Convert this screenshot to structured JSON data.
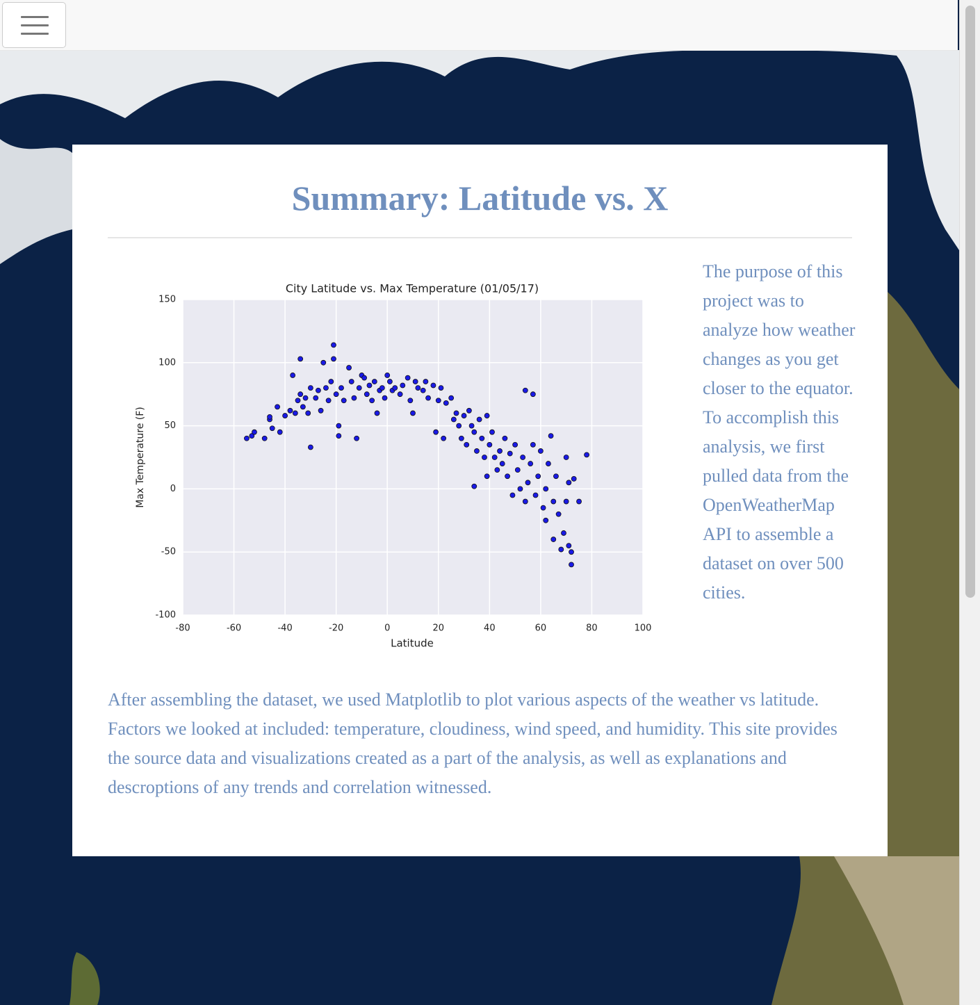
{
  "page": {
    "title": "Summary: Latitude vs. X",
    "side_text": "The purpose of this project was to analyze how weather changes as you get closer to the equator. To accomplish this analysis, we first pulled data from the OpenWeatherMap API to assemble a dataset on over 500 cities.",
    "body_text": "After assembling the dataset, we used Matplotlib to plot various aspects of the weather vs latitude. Factors we looked at included: temperature, cloudiness, wind speed, and humidity. This site provides the source data and visualizations created as a part of the analysis, as well as explanations and descroptions of any trends and correlation witnessed."
  },
  "chart_data": {
    "type": "scatter",
    "title": "City Latitude vs. Max Temperature (01/05/17)",
    "x_label": "Latitude",
    "y_label": "Max Temperature (F)",
    "color": "#1a1ae6",
    "grid": true,
    "xlim": [
      -80,
      100
    ],
    "ylim": [
      -100,
      150
    ],
    "xticks": [
      -80,
      -60,
      -40,
      -20,
      0,
      20,
      40,
      60,
      80,
      100
    ],
    "yticks": [
      -100,
      -50,
      0,
      50,
      100,
      150
    ],
    "x": [
      -55,
      -53,
      -52,
      -48,
      -46,
      -46,
      -45,
      -43,
      -42,
      -40,
      -38,
      -37,
      -36,
      -35,
      -34,
      -34,
      -33,
      -32,
      -31,
      -30,
      -30,
      -28,
      -27,
      -26,
      -25,
      -24,
      -23,
      -22,
      -21,
      -21,
      -20,
      -19,
      -19,
      -18,
      -17,
      -15,
      -14,
      -13,
      -12,
      -11,
      -10,
      -9,
      -8,
      -7,
      -6,
      -5,
      -4,
      -3,
      -2,
      -1,
      0,
      1,
      2,
      3,
      5,
      6,
      8,
      9,
      10,
      11,
      12,
      14,
      15,
      16,
      18,
      19,
      20,
      21,
      22,
      23,
      25,
      26,
      27,
      28,
      29,
      30,
      31,
      32,
      33,
      34,
      35,
      36,
      37,
      38,
      39,
      40,
      41,
      42,
      43,
      44,
      45,
      46,
      47,
      48,
      49,
      50,
      51,
      52,
      53,
      54,
      54,
      55,
      56,
      57,
      57,
      58,
      59,
      60,
      61,
      62,
      62,
      63,
      64,
      65,
      65,
      66,
      67,
      68,
      69,
      70,
      70,
      71,
      71,
      72,
      72,
      73,
      75,
      78,
      34,
      39
    ],
    "values": [
      40,
      42,
      45,
      40,
      55,
      57,
      48,
      65,
      45,
      58,
      62,
      90,
      60,
      70,
      75,
      103,
      65,
      72,
      60,
      33,
      80,
      72,
      78,
      62,
      100,
      80,
      70,
      85,
      114,
      103,
      75,
      50,
      42,
      80,
      70,
      96,
      85,
      72,
      40,
      80,
      90,
      88,
      75,
      82,
      70,
      85,
      60,
      78,
      80,
      72,
      90,
      85,
      78,
      80,
      75,
      82,
      88,
      70,
      60,
      85,
      80,
      78,
      85,
      72,
      82,
      45,
      70,
      80,
      40,
      68,
      72,
      55,
      60,
      50,
      40,
      58,
      35,
      62,
      50,
      45,
      30,
      55,
      40,
      25,
      58,
      35,
      45,
      25,
      15,
      30,
      20,
      40,
      10,
      28,
      -5,
      35,
      15,
      0,
      25,
      78,
      -10,
      5,
      20,
      35,
      75,
      -5,
      10,
      30,
      -15,
      0,
      -25,
      20,
      42,
      -10,
      -40,
      10,
      -20,
      -48,
      -35,
      25,
      -10,
      -45,
      5,
      -60,
      -50,
      8,
      -10,
      27,
      2,
      10
    ]
  }
}
